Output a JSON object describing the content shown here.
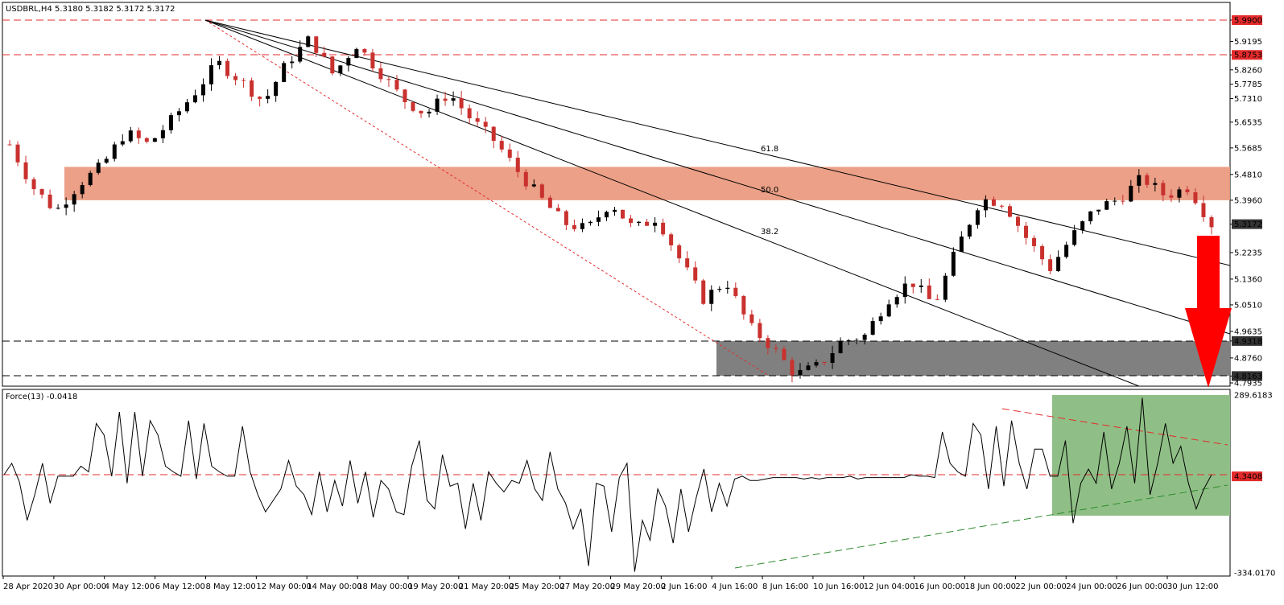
{
  "chart_data": [
    {
      "type": "candlestick",
      "symbol_header": "USDBRL,H4  5.3180 5.3182 5.3172 5.3172",
      "y_ticks": [
        "5.9900",
        "5.9195",
        "5.8753",
        "5.8260",
        "5.7785",
        "5.7310",
        "5.6535",
        "5.5685",
        "5.4810",
        "5.3960",
        "5.3172",
        "5.2235",
        "5.1360",
        "5.0510",
        "4.9635",
        "4.9318",
        "4.8760",
        "4.8163",
        "4.7935"
      ],
      "ylim": [
        4.7935,
        5.99
      ],
      "resistance_levels": [
        {
          "label": "5.9900",
          "value": 5.99
        },
        {
          "label": "5.8753",
          "value": 5.8753
        }
      ],
      "resistance_zone": {
        "low": 5.396,
        "high": 5.506
      },
      "support_zone": {
        "label_high": "4.9318",
        "label_low": "4.8163",
        "high": 4.9318,
        "low": 4.8163
      },
      "current_price": {
        "label": "5.3172",
        "value": 5.3172
      },
      "fib_labels": [
        "61.8",
        "50.0",
        "38.2"
      ],
      "x_ticks": [
        "28 Apr 2020",
        "30 Apr 00:00",
        "4 May 12:00",
        "6 May 12:00",
        "8 May 12:00",
        "12 May 00:00",
        "14 May 00:00",
        "18 May 00:00",
        "19 May 20:00",
        "21 May 20:00",
        "25 May 20:00",
        "27 May 20:00",
        "29 May 20:00",
        "2 Jun 16:00",
        "4 Jun 16:00",
        "8 Jun 16:00",
        "10 Jun 16:00",
        "12 Jun 04:00",
        "16 Jun 00:00",
        "18 Jun 00:00",
        "22 Jun 00:00",
        "24 Jun 00:00",
        "26 Jun 00:00",
        "30 Jun 12:00"
      ],
      "close_path": [
        5.58,
        5.44,
        5.36,
        5.45,
        5.51,
        5.62,
        5.58,
        5.66,
        5.75,
        5.85,
        5.79,
        5.72,
        5.85,
        5.93,
        5.81,
        5.91,
        5.82,
        5.73,
        5.68,
        5.75,
        5.66,
        5.59,
        5.49,
        5.4,
        5.32,
        5.3,
        5.39,
        5.3,
        5.34,
        5.2,
        5.07,
        5.13,
        4.98,
        4.91,
        4.82,
        4.85,
        4.93,
        4.95,
        5.07,
        5.13,
        5.05,
        5.24,
        5.4,
        5.39,
        5.27,
        5.17,
        5.28,
        5.37,
        5.4,
        5.47,
        5.41,
        5.44,
        5.3172
      ],
      "colors": {
        "bull": "#000000",
        "bear": "#c9312e",
        "zone_resist": "#e9967a",
        "zone_support": "#808080",
        "level": "#e52b2b",
        "arrow": "#ff0000"
      }
    },
    {
      "type": "line",
      "indicator_header": "Force(13) -0.0418",
      "y_ticks": [
        "289.6183",
        "4.3408",
        "-334.0170"
      ],
      "ylim": [
        -334.017,
        289.6183
      ],
      "zero_line": {
        "label": "4.3408",
        "value": 4.3408
      },
      "series": [
        {
          "values": [
            10,
            50,
            -15,
            -150,
            -60,
            50,
            -90,
            5,
            5,
            5,
            40,
            20,
            190,
            150,
            5,
            230,
            -20,
            230,
            5,
            200,
            150,
            40,
            20,
            5,
            200,
            -5,
            190,
            40,
            20,
            5,
            5,
            180,
            20,
            -60,
            -120,
            -80,
            -40,
            60,
            -30,
            -60,
            -130,
            20,
            -120,
            -10,
            -100,
            60,
            -90,
            20,
            -140,
            -10,
            -40,
            -120,
            -130,
            40,
            130,
            -80,
            -110,
            80,
            -30,
            -20,
            -180,
            -20,
            -150,
            20,
            -20,
            -50,
            -10,
            -20,
            60,
            -40,
            -80,
            90,
            -40,
            -90,
            -180,
            -110,
            -310,
            -20,
            -30,
            -190,
            0,
            50,
            -330,
            -150,
            -220,
            -40,
            -100,
            -230,
            -40,
            -190,
            -70,
            30,
            -120,
            -20,
            -100,
            -5,
            5,
            -10,
            -10,
            -5,
            0,
            0,
            0,
            0,
            -5,
            0,
            -5,
            0,
            0,
            0,
            5,
            -5,
            0,
            0,
            0,
            0,
            0,
            0,
            10,
            5,
            5,
            0,
            160,
            50,
            20,
            5,
            190,
            150,
            -40,
            180,
            -30,
            200,
            50,
            -40,
            100,
            100,
            5,
            5,
            130,
            -160,
            -20,
            30,
            -20,
            160,
            -40,
            50,
            180,
            -20,
            280,
            -60,
            50,
            190,
            50,
            110,
            -20,
            -110,
            -40,
            10
          ]
        }
      ],
      "trendlines": [
        "descending",
        "ascending"
      ],
      "colors": {
        "line": "#000000",
        "zero": "#e52b2b",
        "box": "#8fbf86",
        "down": "#e52b2b",
        "up": "#2e8b2e"
      }
    }
  ]
}
